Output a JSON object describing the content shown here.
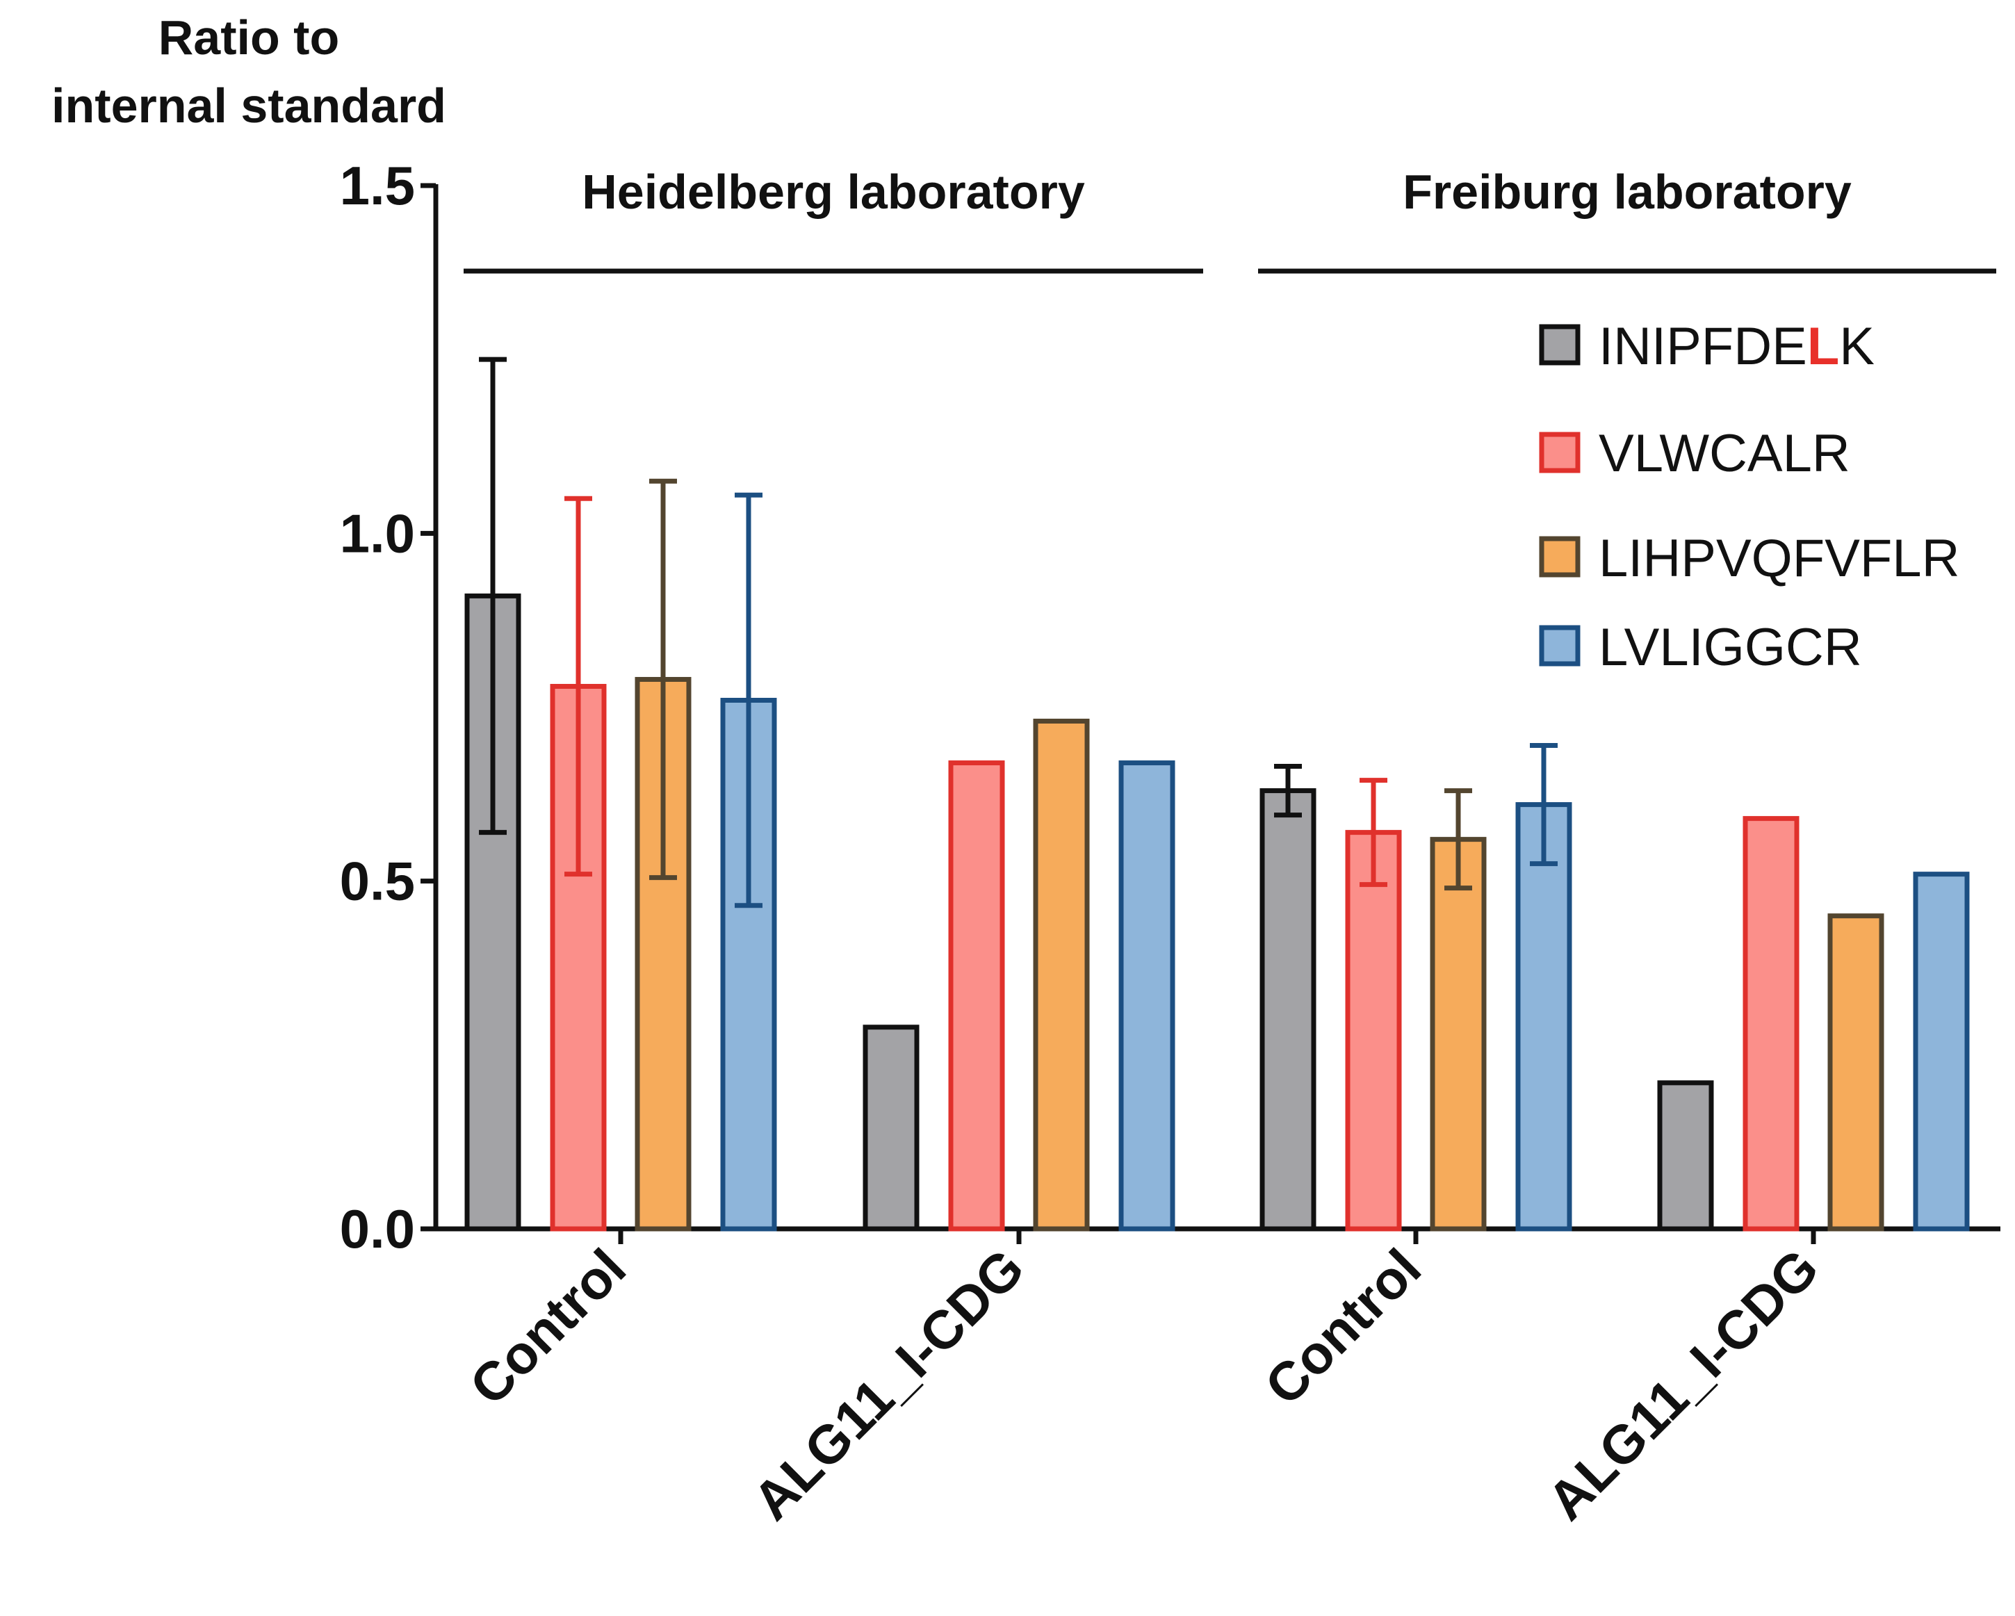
{
  "chart_data": {
    "type": "bar",
    "ylabel_lines": [
      "Ratio to",
      "internal standard"
    ],
    "ylim": [
      0,
      1.5
    ],
    "yticks": [
      "0.0",
      "0.5",
      "1.0",
      "1.5"
    ],
    "ytick_values": [
      0,
      0.5,
      1.0,
      1.5
    ],
    "groups": [
      {
        "name": "Heidelberg laboratory",
        "categories": [
          "Control",
          "ALG11_I-CDG"
        ]
      },
      {
        "name": "Freiburg laboratory",
        "categories": [
          "Control",
          "ALG11_I-CDG"
        ]
      }
    ],
    "categories": [
      "Control",
      "ALG11_I-CDG",
      "Control",
      "ALG11_I-CDG"
    ],
    "series": [
      {
        "name": "INIPFDELK",
        "name_parts": [
          "INIPFDE",
          "L",
          "K"
        ],
        "highlight_index": 1,
        "fill": "#a3a3a6",
        "stroke": "#111111",
        "values": [
          0.91,
          0.29,
          0.63,
          0.21
        ],
        "errors": [
          0.34,
          null,
          0.035,
          null
        ]
      },
      {
        "name": "VLWCALR",
        "fill": "#fb8f8a",
        "stroke": "#e0312c",
        "values": [
          0.78,
          0.67,
          0.57,
          0.59
        ],
        "errors": [
          0.27,
          null,
          0.075,
          null
        ]
      },
      {
        "name": "LIHPVQFVFLR",
        "fill": "#f6ab5b",
        "stroke": "#53452f",
        "values": [
          0.79,
          0.73,
          0.56,
          0.45
        ],
        "errors": [
          0.285,
          null,
          0.07,
          null
        ]
      },
      {
        "name": "LVLIGGCR",
        "fill": "#8eb5da",
        "stroke": "#1c4f82",
        "values": [
          0.76,
          0.67,
          0.61,
          0.51
        ],
        "errors": [
          0.295,
          null,
          0.085,
          null
        ]
      }
    ],
    "legend_position": "top-right",
    "highlight_color": "#e8302a"
  }
}
